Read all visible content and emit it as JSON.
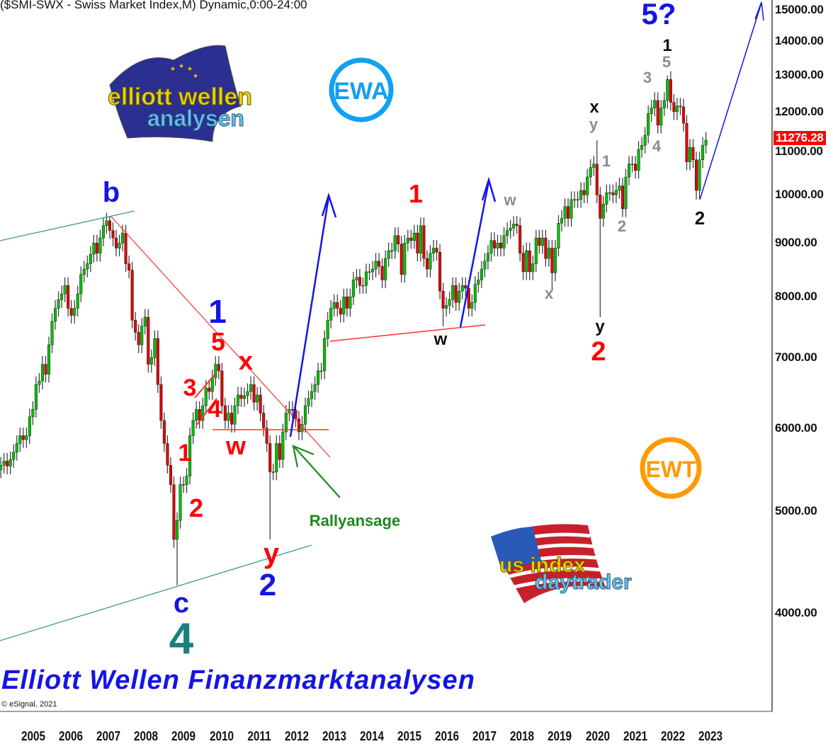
{
  "title": "($SMI-SWX - Swiss Market Index,M) Dynamic,0:00-24:00",
  "last_price_label": "11276.28",
  "footer_text": "Elliott Wellen Finanzmarktanalysen",
  "copyright": "© eSignal, 2021",
  "logos": {
    "ewa": "EWA",
    "ewt": "EWT",
    "elliott_logo": [
      "elliott wellen",
      "analysen"
    ],
    "us_logo": [
      "us index",
      "daytrader"
    ]
  },
  "colors": {
    "up_candle": "#00c000",
    "down_candle": "#e00000",
    "wave_blue": "#1414e6",
    "wave_red": "#ff0000",
    "wave_grey": "#8c8c8c",
    "wave_teal": "#1a7f7f",
    "channel": "#3a9a9a",
    "ewa": "#12a0f0",
    "ewt": "#ff9a00",
    "rally": "#1a8a1a"
  },
  "annotations": [
    {
      "text": "b",
      "color": "#1414e6"
    },
    {
      "text": "c",
      "color": "#1414e6"
    },
    {
      "text": "4",
      "color": "#1a7f7f"
    },
    {
      "text": "1",
      "color": "#1414e6"
    },
    {
      "text": "5",
      "color": "#ff0000"
    },
    {
      "text": "x",
      "color": "#ff0000"
    },
    {
      "text": "3",
      "color": "#ff0000"
    },
    {
      "text": "4",
      "color": "#ff0000"
    },
    {
      "text": "w",
      "color": "#ff0000"
    },
    {
      "text": "1",
      "color": "#ff0000"
    },
    {
      "text": "2",
      "color": "#ff0000"
    },
    {
      "text": "y",
      "color": "#ff0000"
    },
    {
      "text": "2",
      "color": "#1414e6"
    },
    {
      "text": "Rallyansage",
      "color": "#1a8a1a"
    },
    {
      "text": "1",
      "color": "#ff0000"
    },
    {
      "text": "w",
      "color": "#111111"
    },
    {
      "text": "w",
      "color": "#8c8c8c"
    },
    {
      "text": "x",
      "color": "#8c8c8c"
    },
    {
      "text": "x",
      "color": "#111111"
    },
    {
      "text": "y",
      "color": "#8c8c8c"
    },
    {
      "text": "1",
      "color": "#8c8c8c"
    },
    {
      "text": "2",
      "color": "#8c8c8c"
    },
    {
      "text": "y",
      "color": "#111111"
    },
    {
      "text": "2",
      "color": "#ff0000"
    },
    {
      "text": "3",
      "color": "#8c8c8c"
    },
    {
      "text": "5",
      "color": "#8c8c8c"
    },
    {
      "text": "1",
      "color": "#111111"
    },
    {
      "text": "4",
      "color": "#8c8c8c"
    },
    {
      "text": "5?",
      "color": "#1414e6"
    },
    {
      "text": "2",
      "color": "#111111"
    }
  ],
  "chart_data": {
    "type": "candlestick",
    "title": "($SMI-SWX - Swiss Market Index,M) Dynamic,0:00-24:00",
    "y_scale": "log",
    "ylim": [
      3600,
      15500
    ],
    "y_ticks": [
      "4000.00",
      "5000.00",
      "6000.00",
      "7000.00",
      "8000.00",
      "9000.00",
      "10000.00",
      "11000.00",
      "12000.00",
      "13000.00",
      "14000.00",
      "15000.00"
    ],
    "x_ticks": [
      "2005",
      "2006",
      "2007",
      "2008",
      "2009",
      "2010",
      "2011",
      "2012",
      "2013",
      "2014",
      "2015",
      "2016",
      "2017",
      "2018",
      "2019",
      "2020",
      "2021",
      "2022",
      "2023"
    ],
    "grid": false,
    "start_month": "2004-08",
    "monthly_close": [
      5530,
      5580,
      5520,
      5600,
      5690,
      5800,
      5900,
      5850,
      5900,
      6150,
      6250,
      6600,
      6650,
      6900,
      6750,
      7200,
      7580,
      7800,
      7950,
      8050,
      8200,
      7800,
      7680,
      7800,
      8050,
      8400,
      8500,
      8600,
      8780,
      9000,
      8800,
      9100,
      9350,
      9450,
      9250,
      9100,
      8900,
      9000,
      9200,
      8600,
      8480,
      7600,
      7400,
      7200,
      7500,
      7650,
      6900,
      7000,
      7300,
      6600,
      6100,
      5800,
      5530,
      5300,
      4700,
      4900,
      5300,
      5300,
      5400,
      5900,
      6100,
      6250,
      6100,
      6300,
      6550,
      6500,
      6700,
      6900,
      6800,
      6300,
      6100,
      6200,
      6050,
      6300,
      6450,
      6400,
      6440,
      6500,
      6600,
      6350,
      6450,
      6200,
      6000,
      5800,
      5450,
      5450,
      5800,
      5600,
      5950,
      6200,
      6250,
      6240,
      6120,
      5950,
      6050,
      6300,
      6400,
      6500,
      6600,
      6800,
      6800,
      7300,
      7600,
      7800,
      7900,
      7800,
      7700,
      8000,
      7800,
      8000,
      8300,
      8350,
      8200,
      8200,
      8450,
      8450,
      8500,
      8650,
      8550,
      8300,
      8700,
      8850,
      8850,
      9150,
      8980,
      8400,
      9000,
      9100,
      9050,
      9200,
      8800,
      9350,
      8700,
      8500,
      8800,
      8900,
      8820,
      8100,
      7800,
      7850,
      7950,
      8200,
      7900,
      8100,
      8200,
      8150,
      7800,
      7900,
      8220,
      8300,
      8500,
      8650,
      8800,
      9050,
      8900,
      9000,
      8900,
      9150,
      9250,
      9300,
      9380,
      9350,
      8800,
      8450,
      8850,
      8450,
      8600,
      9100,
      8950,
      9100,
      8700,
      8900,
      8430,
      8900,
      9400,
      9500,
      9750,
      9500,
      9900,
      9900,
      9900,
      10100,
      10000,
      10400,
      10620,
      10700,
      10000,
      9500,
      9800,
      10050,
      10050,
      10000,
      10100,
      10200,
      9700,
      10400,
      10700,
      10700,
      10550,
      11050,
      11150,
      11400,
      11950,
      12100,
      12300,
      11650,
      12100,
      12300,
      12880,
      12250,
      12000,
      12150,
      12130,
      11700,
      10750,
      11100,
      10800,
      10100,
      10800,
      11150,
      11276.28
    ],
    "extreme_wicks": {
      "2007-06": {
        "high": 9550
      },
      "2009-03": {
        "low": 4250
      },
      "2011-08": {
        "low": 4700
      },
      "2016-02": {
        "low": 7500
      },
      "2018-12": {
        "low": 8100
      },
      "2020-02": {
        "high": 11270
      },
      "2020-03": {
        "low": 7650
      },
      "2021-12": {
        "high": 12990
      },
      "2022-09": {
        "low": 9900
      }
    },
    "last_value": 11276.28
  }
}
